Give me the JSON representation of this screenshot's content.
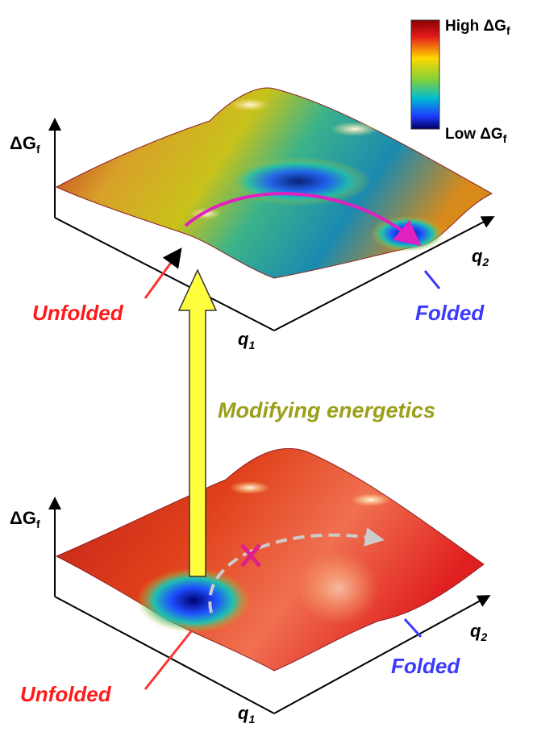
{
  "colorbar": {
    "high": {
      "label": "High ΔG",
      "sub": "f"
    },
    "low": {
      "label": "Low ΔG",
      "sub": "f"
    }
  },
  "panels": [
    {
      "energy_axis": {
        "label": "ΔG",
        "sub": "f"
      },
      "q1_axis": {
        "label": "q",
        "sub": "1"
      },
      "q2_axis": {
        "label": "q",
        "sub": "2"
      },
      "unfolded": "Unfolded",
      "folded": "Folded"
    },
    {
      "energy_axis": {
        "label": "ΔG",
        "sub": "f"
      },
      "q1_axis": {
        "label": "q",
        "sub": "1"
      },
      "q2_axis": {
        "label": "q",
        "sub": "2"
      },
      "unfolded": "Unfolded",
      "folded": "Folded"
    }
  ],
  "arrow_label": "Modifying energetics"
}
